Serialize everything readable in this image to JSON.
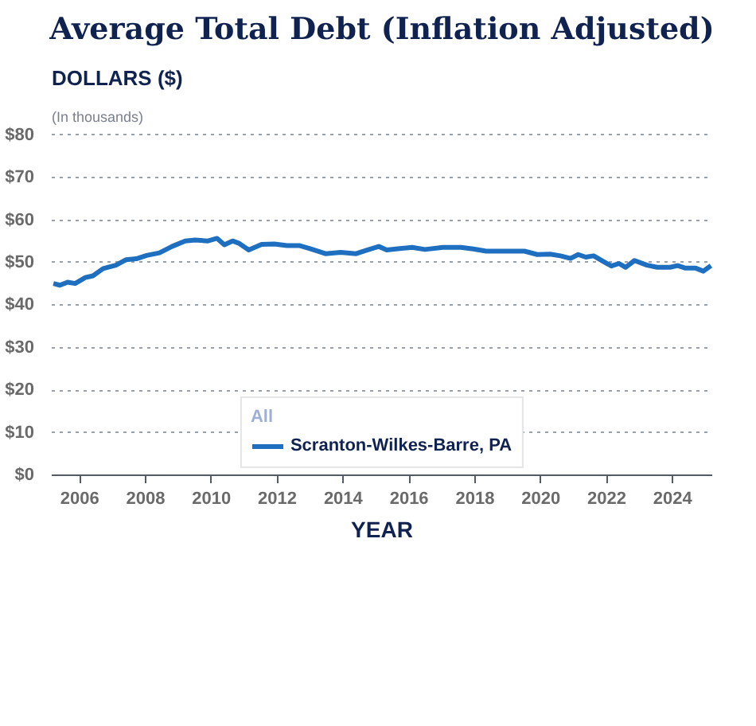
{
  "chart_data": {
    "type": "line",
    "title": "Average Total Debt (Inflation Adjusted)",
    "subtitle": "(In thousands)",
    "ylabel": "DOLLARS ($)",
    "xlabel": "YEAR",
    "legend_title": "All",
    "x": [
      2005.2,
      2005.4,
      2005.63,
      2005.86,
      2006.17,
      2006.4,
      2006.71,
      2007.1,
      2007.41,
      2007.72,
      2008.03,
      2008.42,
      2008.8,
      2009.2,
      2009.5,
      2009.89,
      2010.17,
      2010.39,
      2010.64,
      2010.82,
      2011.13,
      2011.52,
      2011.91,
      2012.29,
      2012.68,
      2012.99,
      2013.46,
      2013.92,
      2014.39,
      2014.78,
      2015.08,
      2015.32,
      2015.71,
      2016.09,
      2016.48,
      2017.02,
      2017.57,
      2017.95,
      2018.34,
      2018.88,
      2019.5,
      2019.89,
      2020.28,
      2020.59,
      2020.9,
      2021.13,
      2021.36,
      2021.6,
      2021.91,
      2022.14,
      2022.37,
      2022.57,
      2022.84,
      2023.22,
      2023.53,
      2023.92,
      2024.15,
      2024.39,
      2024.7,
      2024.93,
      2025.16
    ],
    "series": [
      {
        "name": "Scranton-Wilkes-Barre, PA",
        "color": "#1f6fc0",
        "values": [
          45.1,
          44.7,
          45.4,
          45.1,
          46.5,
          46.9,
          48.6,
          49.4,
          50.7,
          50.9,
          51.7,
          52.3,
          53.8,
          55.1,
          55.3,
          55.1,
          55.7,
          54.2,
          55.1,
          54.6,
          53.0,
          54.3,
          54.4,
          54.0,
          54.0,
          53.3,
          52.1,
          52.4,
          52.1,
          53.1,
          53.8,
          53.0,
          53.3,
          53.6,
          53.1,
          53.6,
          53.6,
          53.2,
          52.7,
          52.7,
          52.7,
          51.9,
          52.0,
          51.6,
          51.0,
          51.9,
          51.3,
          51.6,
          50.2,
          49.2,
          49.8,
          48.9,
          50.5,
          49.4,
          48.9,
          48.9,
          49.3,
          48.7,
          48.7,
          48.0,
          49.3
        ]
      }
    ],
    "xlim": [
      2005.15,
      2025.2
    ],
    "xticks": [
      2006,
      2008,
      2010,
      2012,
      2014,
      2016,
      2018,
      2020,
      2022,
      2024
    ],
    "ylim": [
      0,
      80.5
    ],
    "yticks": [
      {
        "value": 0,
        "label": "$0"
      },
      {
        "value": 10,
        "label": "$10"
      },
      {
        "value": 20,
        "label": "$20"
      },
      {
        "value": 30,
        "label": "$30"
      },
      {
        "value": 40,
        "label": "$40"
      },
      {
        "value": 50,
        "label": "$50"
      },
      {
        "value": 60,
        "label": "$60"
      },
      {
        "value": 70,
        "label": "$70"
      },
      {
        "value": 80,
        "label": "$80"
      }
    ],
    "grid": "y",
    "legend": "bottom",
    "line_style": "solid",
    "marker": "none"
  }
}
